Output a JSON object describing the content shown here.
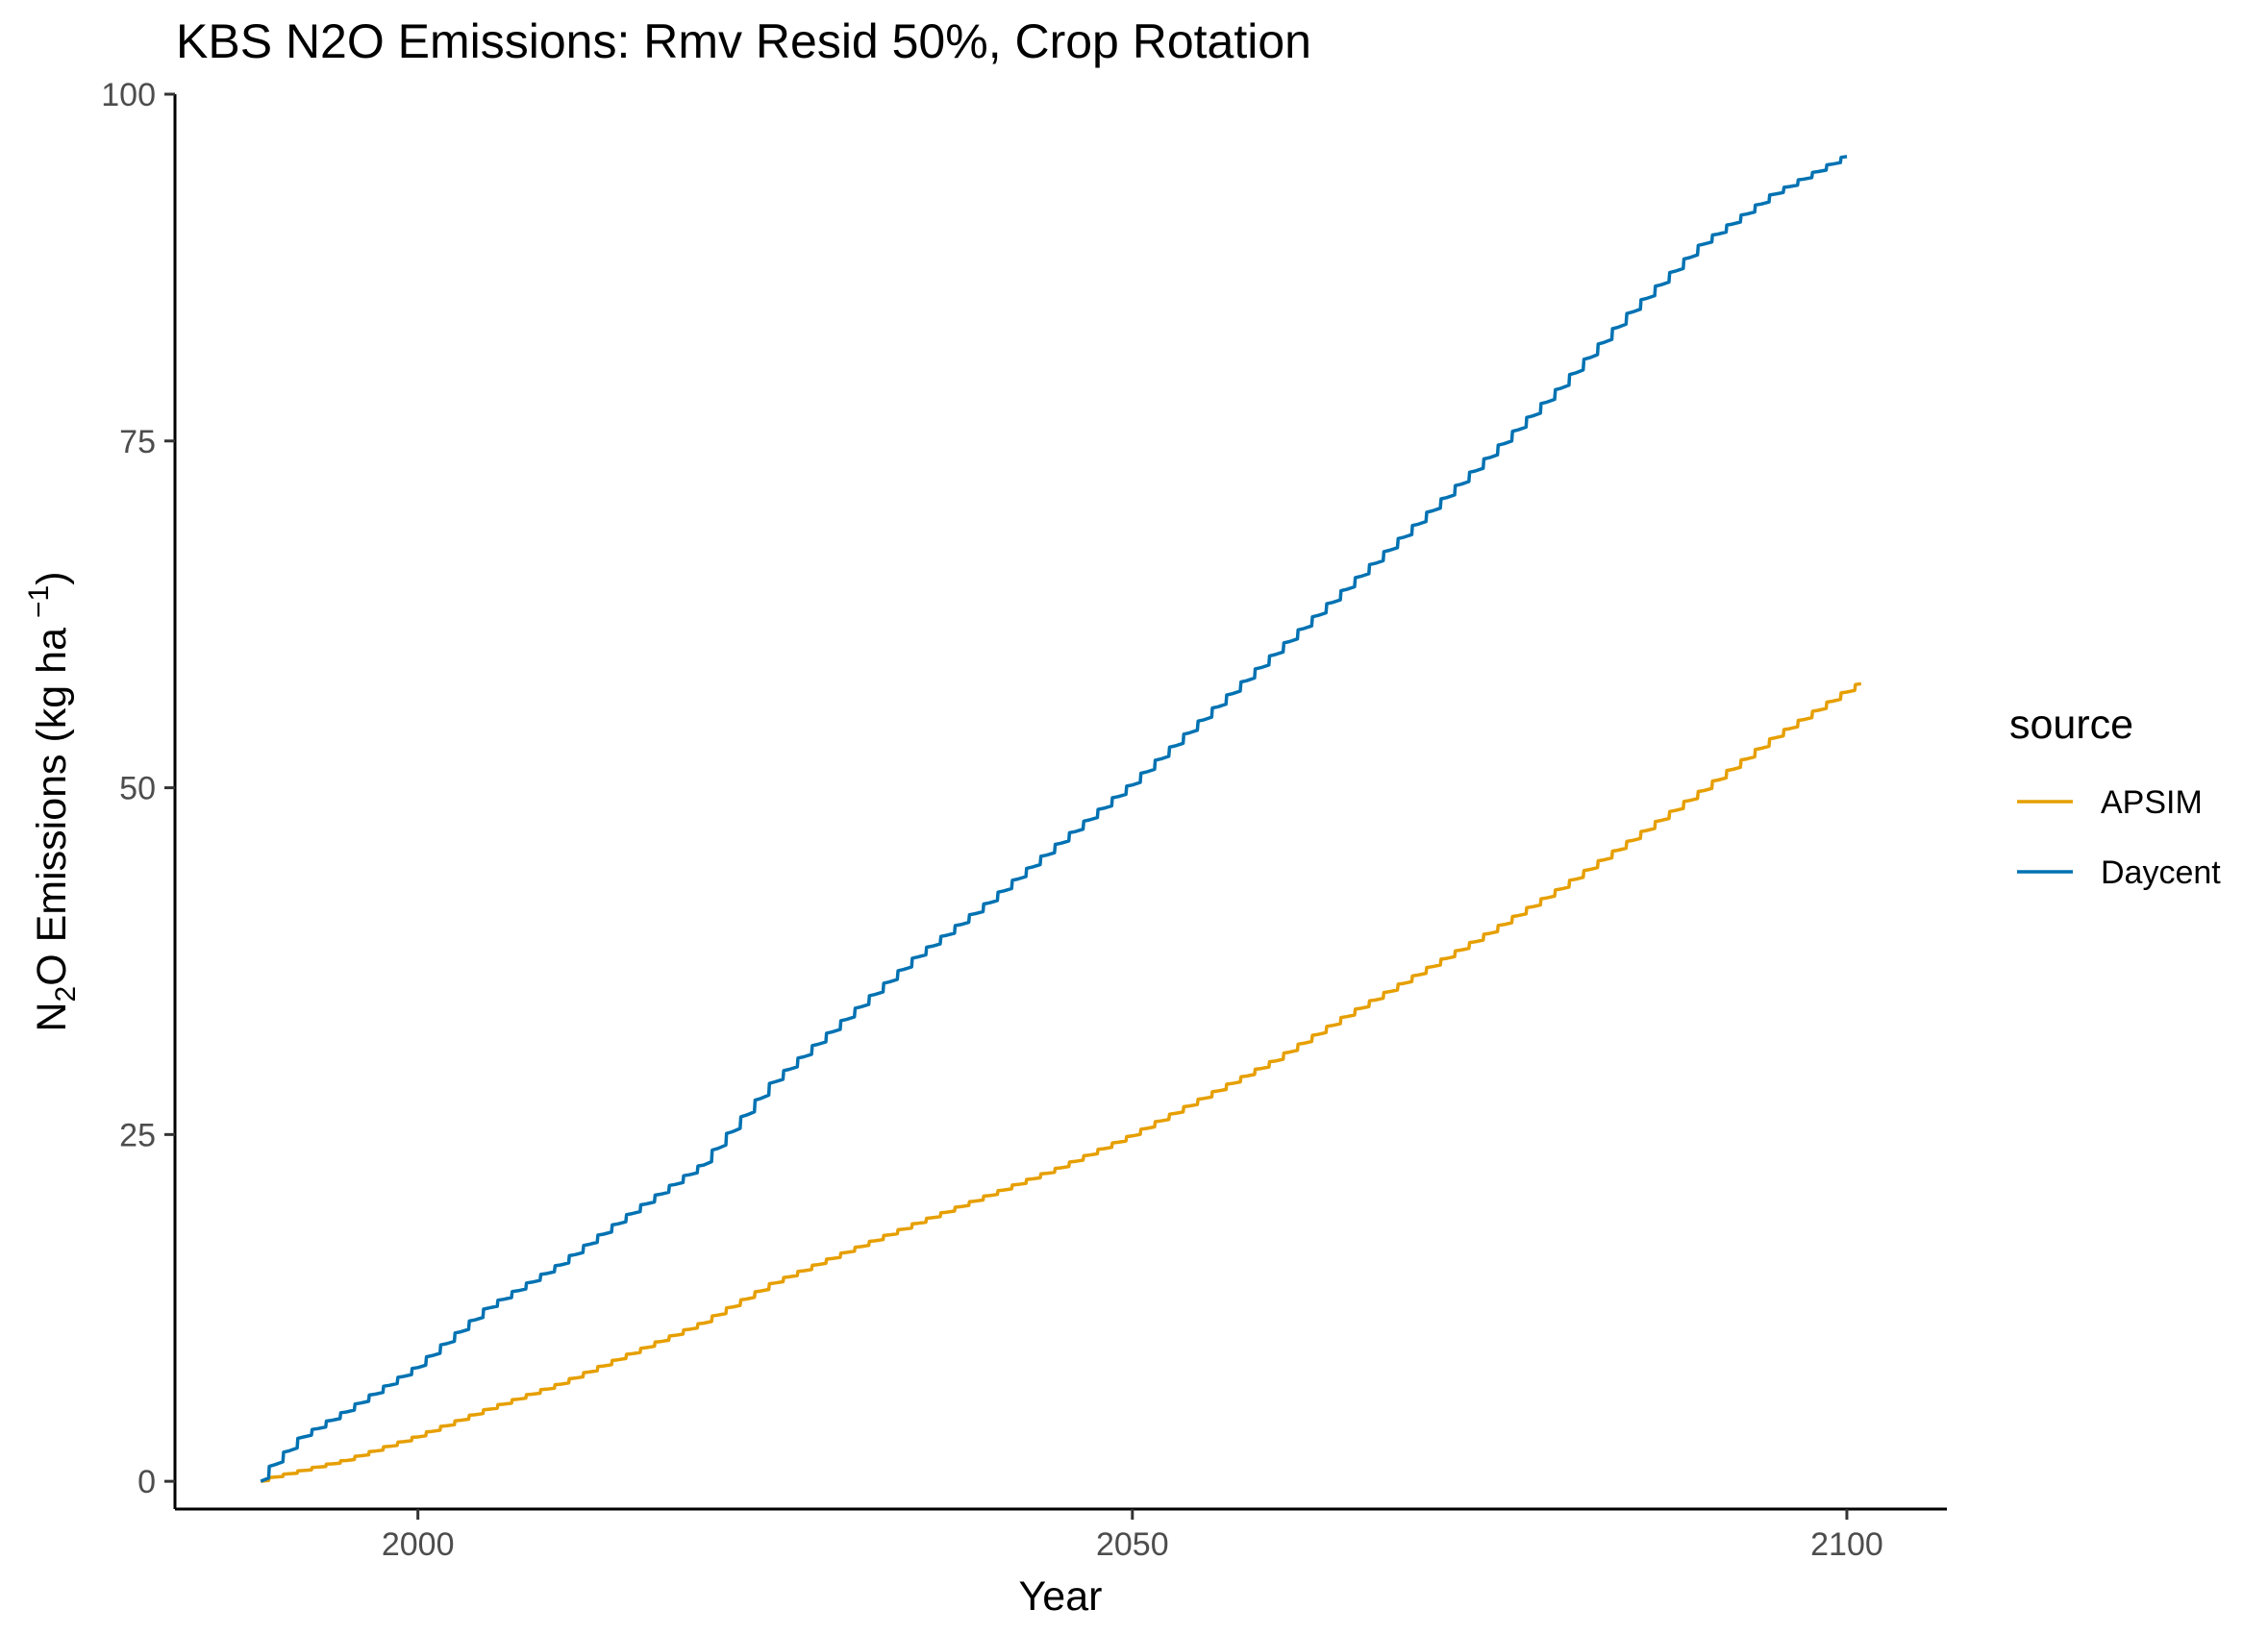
{
  "chart_data": {
    "type": "line",
    "title": "KBS N2O Emissions:  Rmv Resid 50%, Crop Rotation",
    "xlabel": "Year",
    "ylabel": {
      "pre": "N",
      "sub": "2",
      "mid": "O Emissions (kg ha",
      "sup": "−1",
      "post": ")"
    },
    "xlim": [
      1983,
      2107
    ],
    "ylim": [
      -2,
      100
    ],
    "xticks": [
      2000,
      2050,
      2100
    ],
    "xtick_labels": [
      "2000",
      "2050",
      "2100"
    ],
    "yticks": [
      0,
      25,
      50,
      75,
      100
    ],
    "ytick_labels": [
      "0",
      "25",
      "50",
      "75",
      "100"
    ],
    "grid": false,
    "legend": {
      "title": "source",
      "position": "right"
    },
    "series": [
      {
        "name": "APSIM",
        "color": "#E69F00",
        "x": [
          1989,
          1990,
          1995,
          2000,
          2005,
          2010,
          2015,
          2020,
          2025,
          2030,
          2035,
          2040,
          2045,
          2050,
          2055,
          2060,
          2065,
          2070,
          2075,
          2080,
          2085,
          2090,
          2095,
          2100,
          2101
        ],
        "y": [
          0,
          0.3,
          1.5,
          3.2,
          5.2,
          7.0,
          9.2,
          11.4,
          14.3,
          16.5,
          18.6,
          20.6,
          22.6,
          24.9,
          27.6,
          30.3,
          33.5,
          36.5,
          39.5,
          42.7,
          46.2,
          49.8,
          53.6,
          56.9,
          57.5
        ]
      },
      {
        "name": "Daycent",
        "color": "#0072B2",
        "x": [
          1989,
          1990,
          1992,
          1995,
          2000,
          2005,
          2010,
          2015,
          2020,
          2025,
          2030,
          2035,
          2040,
          2045,
          2050,
          2055,
          2060,
          2065,
          2070,
          2075,
          2080,
          2085,
          2090,
          2095,
          2100
        ],
        "y": [
          0,
          1.2,
          3.2,
          5.0,
          8.2,
          12.5,
          15.6,
          19.3,
          22.8,
          28.8,
          33.3,
          37.8,
          41.7,
          46.0,
          50.2,
          54.9,
          59.6,
          64.3,
          69.0,
          73.8,
          78.8,
          84.3,
          89.2,
          92.8,
          95.5
        ]
      }
    ]
  }
}
